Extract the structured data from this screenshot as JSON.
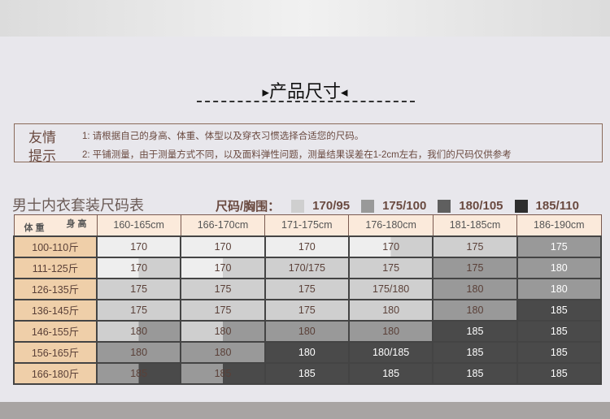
{
  "title": "产品尺寸",
  "notice": {
    "label1": "友情",
    "label2": "提示",
    "line1": "1: 请根据自己的身高、体重、体型以及穿衣习惯选择合适您的尺码。",
    "line2": "2: 平铺测量，由于测量方式不同，以及面料弹性问题，测量结果误差在1-2cm左右，我们的尺码仅供参考"
  },
  "sheet_title": "男士内衣套装尺码表",
  "legend": {
    "label": "尺码/胸围：",
    "items": [
      {
        "label": "170/95",
        "color": "#cfcfcf"
      },
      {
        "label": "175/100",
        "color": "#999999"
      },
      {
        "label": "180/105",
        "color": "#5f5f5f"
      },
      {
        "label": "185/110",
        "color": "#2e2e2e"
      }
    ]
  },
  "colors": [
    "#eeeeee",
    "#cfcfcf",
    "#999999",
    "#4a4a4a"
  ],
  "table": {
    "corner_top": "身 高",
    "corner_bottom": "体 重",
    "columns": [
      "160-165cm",
      "166-170cm",
      "171-175cm",
      "176-180cm",
      "181-185cm",
      "186-190cm"
    ],
    "rows": [
      {
        "weight": "100-110斤",
        "cells": [
          {
            "t": "170",
            "l": 0,
            "r": 0
          },
          {
            "t": "170",
            "l": 0,
            "r": 0
          },
          {
            "t": "170",
            "l": 0,
            "r": 0
          },
          {
            "t": "170",
            "l": 0,
            "r": 1
          },
          {
            "t": "175",
            "l": 1,
            "r": 1
          },
          {
            "t": "175",
            "l": 2,
            "r": 2
          }
        ]
      },
      {
        "weight": "111-125斤",
        "cells": [
          {
            "t": "170",
            "l": 0,
            "r": 1
          },
          {
            "t": "170",
            "l": 0,
            "r": 1
          },
          {
            "t": "170/175",
            "l": 1,
            "r": 1
          },
          {
            "t": "175",
            "l": 1,
            "r": 1
          },
          {
            "t": "175",
            "l": 2,
            "r": 2
          },
          {
            "t": "180",
            "l": 2,
            "r": 2
          }
        ]
      },
      {
        "weight": "126-135斤",
        "cells": [
          {
            "t": "175",
            "l": 1,
            "r": 1
          },
          {
            "t": "175",
            "l": 1,
            "r": 1
          },
          {
            "t": "175",
            "l": 1,
            "r": 1
          },
          {
            "t": "175/180",
            "l": 1,
            "r": 1
          },
          {
            "t": "180",
            "l": 2,
            "r": 2
          },
          {
            "t": "180",
            "l": 2,
            "r": 2
          }
        ]
      },
      {
        "weight": "136-145斤",
        "cells": [
          {
            "t": "175",
            "l": 1,
            "r": 1
          },
          {
            "t": "175",
            "l": 1,
            "r": 1
          },
          {
            "t": "175",
            "l": 1,
            "r": 1
          },
          {
            "t": "180",
            "l": 1,
            "r": 1
          },
          {
            "t": "180",
            "l": 2,
            "r": 2
          },
          {
            "t": "185",
            "l": 3,
            "r": 3
          }
        ]
      },
      {
        "weight": "146-155斤",
        "cells": [
          {
            "t": "180",
            "l": 1,
            "r": 2
          },
          {
            "t": "180",
            "l": 1,
            "r": 2
          },
          {
            "t": "180",
            "l": 2,
            "r": 2
          },
          {
            "t": "180",
            "l": 2,
            "r": 2
          },
          {
            "t": "185",
            "l": 3,
            "r": 3
          },
          {
            "t": "185",
            "l": 3,
            "r": 3
          }
        ]
      },
      {
        "weight": "156-165斤",
        "cells": [
          {
            "t": "180",
            "l": 2,
            "r": 2
          },
          {
            "t": "180",
            "l": 2,
            "r": 2
          },
          {
            "t": "180",
            "l": 3,
            "r": 3
          },
          {
            "t": "180/185",
            "l": 3,
            "r": 3
          },
          {
            "t": "185",
            "l": 3,
            "r": 3
          },
          {
            "t": "185",
            "l": 3,
            "r": 3
          }
        ]
      },
      {
        "weight": "166-180斤",
        "cells": [
          {
            "t": "185",
            "l": 2,
            "r": 3
          },
          {
            "t": "185",
            "l": 2,
            "r": 3
          },
          {
            "t": "185",
            "l": 3,
            "r": 3
          },
          {
            "t": "185",
            "l": 3,
            "r": 3
          },
          {
            "t": "185",
            "l": 3,
            "r": 3
          },
          {
            "t": "185",
            "l": 3,
            "r": 3
          }
        ]
      }
    ]
  }
}
